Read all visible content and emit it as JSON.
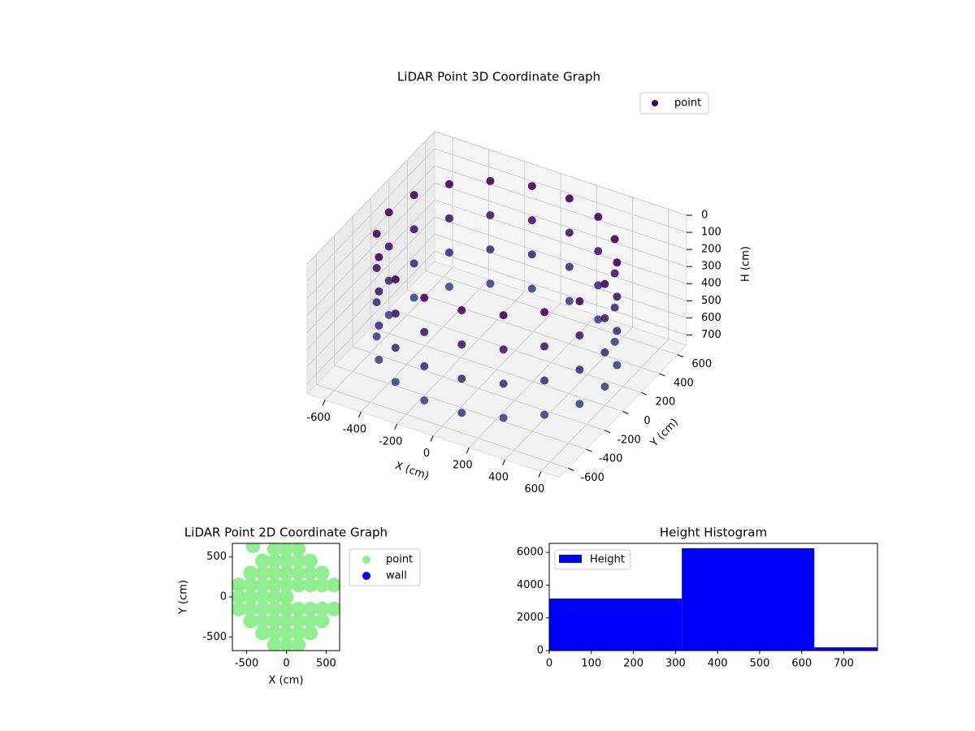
{
  "chart_data": [
    {
      "type": "scatter3d",
      "title": "LiDAR Point 3D Coordinate Graph",
      "xlabel": "X (cm)",
      "ylabel": "Y (cm)",
      "zlabel": "H (cm)",
      "xlim": [
        -700,
        700
      ],
      "ylim": [
        -700,
        700
      ],
      "zlim": [
        760,
        0
      ],
      "xticks": [
        -600,
        -400,
        -200,
        0,
        200,
        400,
        600
      ],
      "yticks": [
        -600,
        -400,
        -200,
        0,
        200,
        400,
        600
      ],
      "zticks": [
        0,
        100,
        200,
        300,
        400,
        500,
        600,
        700
      ],
      "grid": true,
      "legend": "upper right",
      "series": [
        {
          "name": "point",
          "color": "#440154",
          "cmap": [
            "#440154",
            "#3b528b"
          ],
          "x": [
            600,
            564,
            460,
            300,
            104,
            -104,
            -300,
            -460,
            -564,
            -600,
            -564,
            -460,
            -300,
            -104,
            104,
            300,
            460,
            564,
            600,
            564,
            460,
            300,
            104,
            -104,
            -300,
            -460,
            -564,
            -600,
            -564,
            -460,
            -300,
            -104,
            104,
            300,
            460,
            564,
            600,
            564,
            460,
            300,
            104,
            -104,
            -300,
            -460,
            -564,
            -600,
            -564,
            -460,
            -300,
            -104,
            104,
            300,
            460,
            564,
            600,
            564,
            460,
            300,
            104,
            -104,
            -300,
            -460,
            -564,
            -600,
            -564,
            -460,
            -300,
            -104,
            104,
            300,
            460,
            564
          ],
          "y": [
            0,
            205,
            386,
            520,
            591,
            591,
            520,
            386,
            205,
            0,
            -205,
            -386,
            -520,
            -591,
            -591,
            -520,
            -386,
            -205,
            0,
            205,
            386,
            520,
            591,
            591,
            520,
            386,
            205,
            0,
            -205,
            -386,
            -520,
            -591,
            -591,
            -520,
            -386,
            -205,
            0,
            205,
            386,
            520,
            591,
            591,
            520,
            386,
            205,
            0,
            -205,
            -386,
            -520,
            -591,
            -591,
            -520,
            -386,
            -205,
            0,
            205,
            386,
            520,
            591,
            591,
            520,
            386,
            205,
            0,
            -205,
            -386,
            -520,
            -591,
            -591,
            -520,
            -386,
            -205
          ],
          "z": [
            50,
            50,
            50,
            50,
            50,
            50,
            50,
            50,
            50,
            50,
            50,
            50,
            50,
            50,
            50,
            50,
            50,
            50,
            250,
            250,
            250,
            250,
            250,
            250,
            250,
            250,
            250,
            250,
            250,
            250,
            250,
            250,
            250,
            250,
            250,
            250,
            450,
            450,
            450,
            450,
            450,
            450,
            450,
            450,
            450,
            450,
            450,
            450,
            450,
            450,
            450,
            450,
            450,
            450,
            650,
            650,
            650,
            650,
            650,
            650,
            650,
            650,
            650,
            650,
            650,
            650,
            650,
            650,
            650,
            650,
            650,
            650
          ]
        }
      ]
    },
    {
      "type": "scatter",
      "title": "LiDAR Point 2D Coordinate Graph",
      "xlabel": "X (cm)",
      "ylabel": "Y (cm)",
      "xlim": [
        -680,
        670
      ],
      "ylim": [
        -670,
        670
      ],
      "xticks": [
        -500,
        0,
        500
      ],
      "yticks": [
        -500,
        0,
        500
      ],
      "legend": "outside right",
      "series": [
        {
          "name": "point",
          "color": "#90ee90",
          "x": [
            -600,
            -600,
            -600,
            -450,
            -450,
            -450,
            -450,
            -450,
            -300,
            -300,
            -300,
            -300,
            -300,
            -300,
            -300,
            -150,
            -150,
            -150,
            -150,
            -150,
            -150,
            -150,
            -150,
            -150,
            0,
            0,
            0,
            0,
            0,
            0,
            0,
            0,
            0,
            150,
            150,
            150,
            150,
            150,
            150,
            150,
            150,
            300,
            300,
            300,
            300,
            300,
            300,
            450,
            450,
            450,
            450,
            600,
            600,
            -420
          ],
          "y": [
            150,
            0,
            -150,
            300,
            150,
            0,
            -150,
            -300,
            450,
            300,
            150,
            0,
            -150,
            -300,
            -450,
            600,
            450,
            300,
            150,
            0,
            -150,
            -300,
            -450,
            -600,
            600,
            450,
            300,
            150,
            0,
            -150,
            -300,
            -450,
            -600,
            600,
            450,
            300,
            150,
            -150,
            -300,
            -450,
            -600,
            450,
            300,
            150,
            -150,
            -300,
            -450,
            300,
            150,
            -150,
            -300,
            150,
            -150,
            640
          ]
        },
        {
          "name": "wall",
          "color": "#0000ff",
          "x": [],
          "y": []
        }
      ]
    },
    {
      "type": "histogram",
      "title": "Height Histogram",
      "xlim": [
        0,
        780
      ],
      "ylim": [
        0,
        6550
      ],
      "xticks": [
        0,
        100,
        200,
        300,
        400,
        500,
        600,
        700
      ],
      "yticks": [
        0,
        2000,
        4000,
        6000
      ],
      "legend": "upper left",
      "series": [
        {
          "name": "Height",
          "color": "#0000ff",
          "bins": [
            0,
            315,
            630,
            945
          ],
          "values": [
            3180,
            6250,
            200
          ]
        }
      ]
    }
  ]
}
